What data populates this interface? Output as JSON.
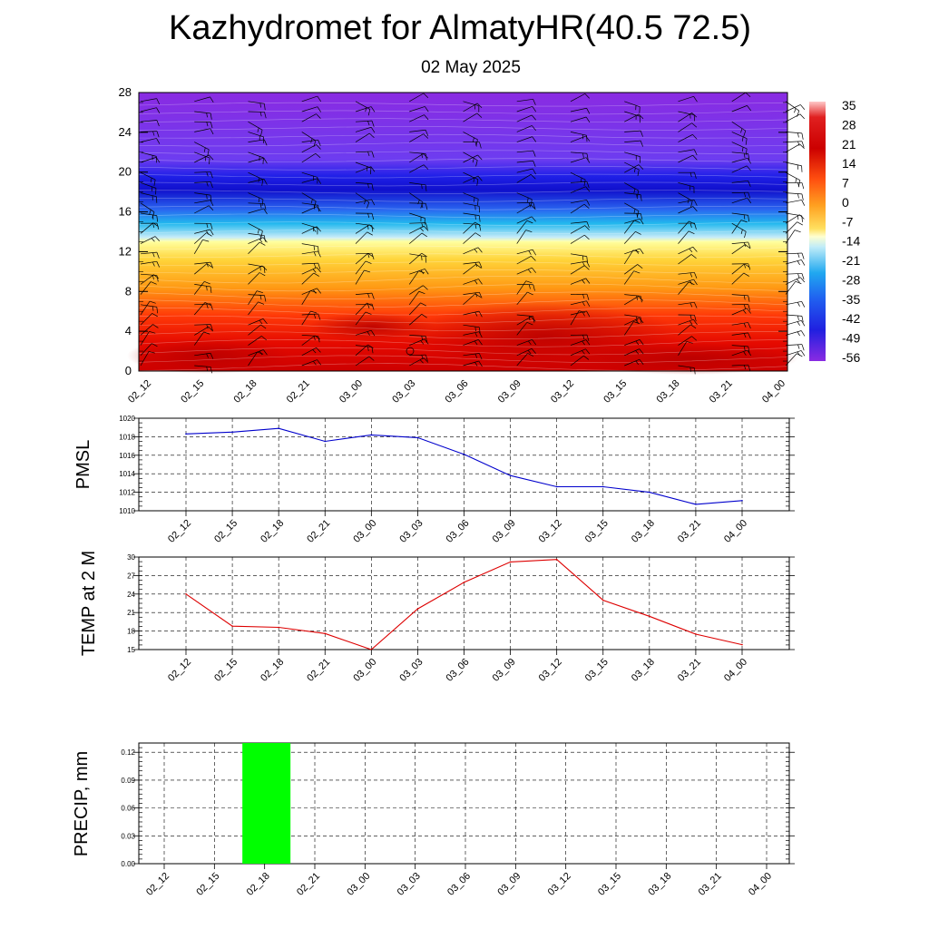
{
  "header": {
    "title": "Kazhydromet for AlmatyHR(40.5 72.5)",
    "date": "02 May 2025"
  },
  "time_labels": [
    "02_12",
    "02_15",
    "02_18",
    "02_21",
    "03_00",
    "03_03",
    "03_06",
    "03_09",
    "03_12",
    "03_15",
    "03_18",
    "03_21",
    "04_00"
  ],
  "chart_data": [
    {
      "type": "heatmap",
      "title": "",
      "xlabel": "",
      "ylabel": "",
      "ylim": [
        0,
        28
      ],
      "y_ticks": [
        0,
        4,
        8,
        12,
        16,
        20,
        24,
        28
      ],
      "colorbar_labels": [
        "35",
        "28",
        "21",
        "14",
        "7",
        "0",
        "-7",
        "-14",
        "-21",
        "-28",
        "-35",
        "-42",
        "-49",
        "-56"
      ],
      "colorbar_range": [
        -60,
        38
      ],
      "freezing_level": 13,
      "overlay": "wind barbs",
      "colors": {
        "warm_base": "#cc0000",
        "freezing": "#ffffa0",
        "cold_top": "#8a2be2"
      }
    },
    {
      "type": "line",
      "ylabel": "PMSL",
      "ylim": [
        1010,
        1020
      ],
      "y_ticks": [
        1010,
        1012,
        1014,
        1016,
        1018,
        1020
      ],
      "series": [
        {
          "values": [
            1018.3,
            1018.5,
            1018.9,
            1017.5,
            1018.2,
            1017.9,
            1016.1,
            1013.8,
            1012.6,
            1012.6,
            1012.0,
            1010.7,
            1011.1
          ],
          "color": "#0000cc"
        }
      ]
    },
    {
      "type": "line",
      "ylabel": "TEMP at 2 M",
      "ylim": [
        15,
        30
      ],
      "y_ticks": [
        15,
        18,
        21,
        24,
        27,
        30
      ],
      "series": [
        {
          "values": [
            24.0,
            18.8,
            18.6,
            17.6,
            15.0,
            21.6,
            25.9,
            29.2,
            29.6,
            23.0,
            20.4,
            17.5,
            15.8
          ],
          "color": "#dd0000"
        }
      ]
    },
    {
      "type": "bar",
      "ylabel": "PRECIP, mm",
      "ylim": [
        0,
        0.13
      ],
      "y_ticks": [
        "0.00",
        "0.03",
        "0.06",
        "0.09",
        "0.12"
      ],
      "categories": [
        "02_12",
        "02_15",
        "02_18",
        "02_21",
        "03_00",
        "03_03",
        "03_06",
        "03_09",
        "03_12",
        "03_15",
        "03_18",
        "03_21",
        "04_00"
      ],
      "values": [
        0,
        0,
        0.13,
        0,
        0,
        0,
        0,
        0,
        0,
        0,
        0,
        0,
        0
      ],
      "color": "#00ff00"
    }
  ]
}
